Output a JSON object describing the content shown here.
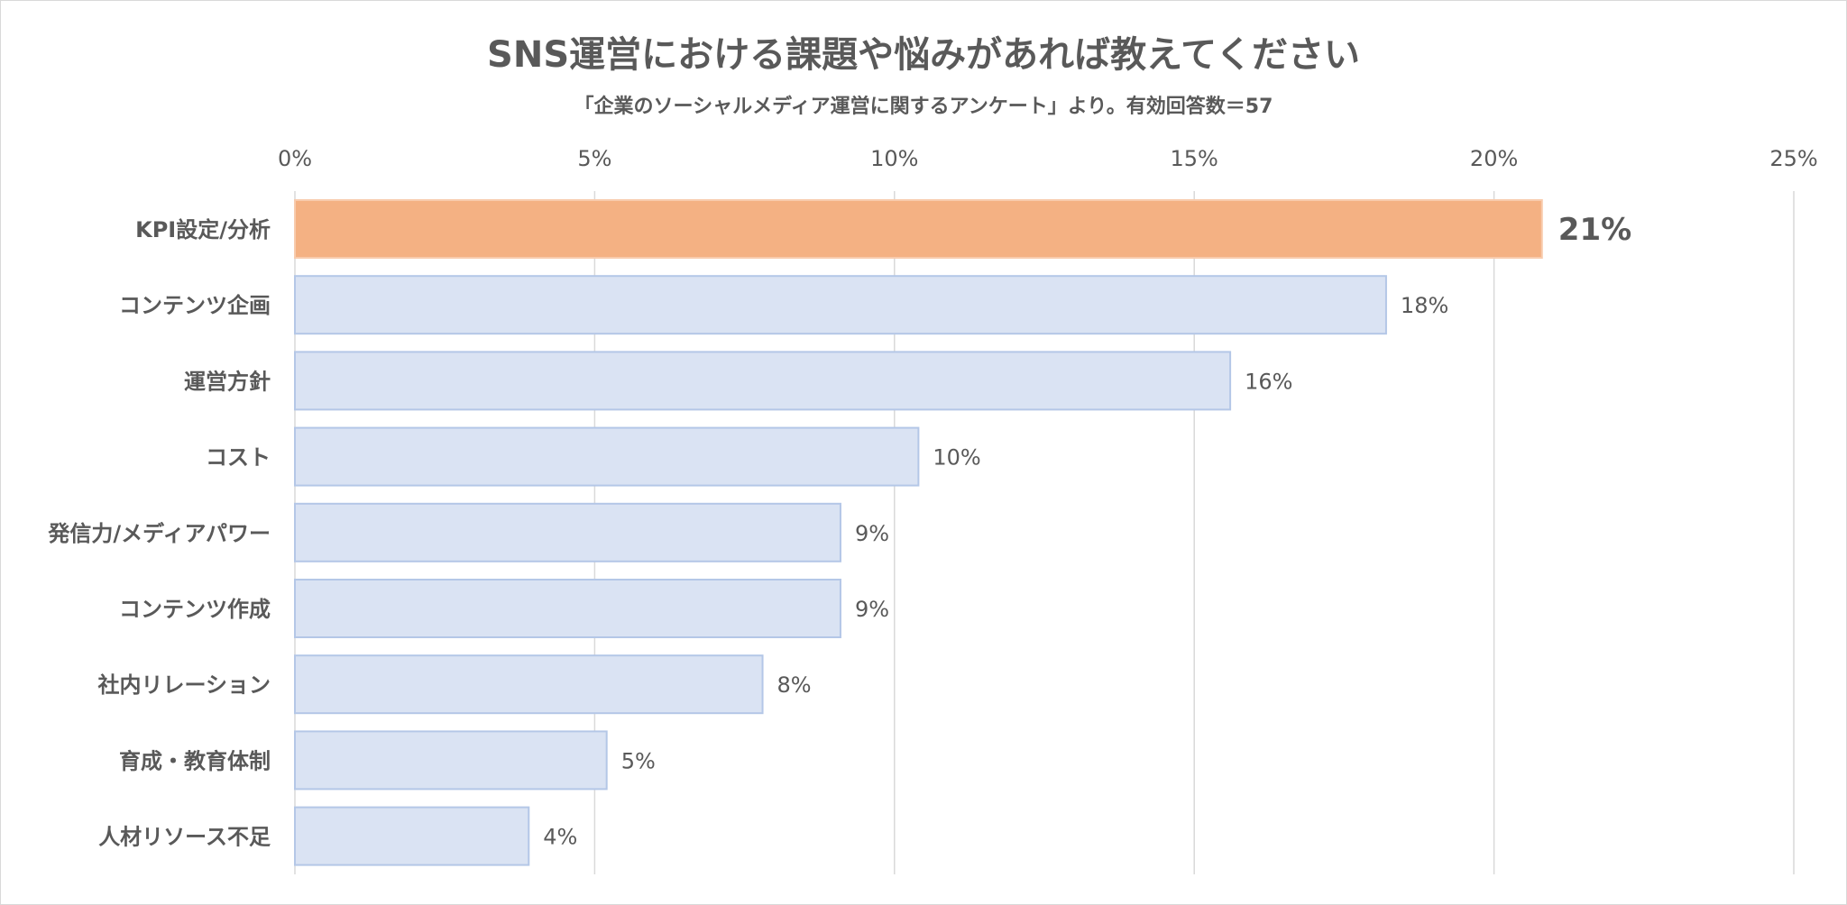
{
  "chart_data": {
    "type": "bar",
    "orientation": "horizontal",
    "title": "SNS運営における課題や悩みがあれば教えてください",
    "subtitle": "「企業のソーシャルメディア運営に関するアンケート」より。有効回答数＝57",
    "categories": [
      "KPI設定/分析",
      "コンテンツ企画",
      "運営方針",
      "コスト",
      "発信力/メディアパワー",
      "コンテンツ作成",
      "社内リレーション",
      "育成・教育体制",
      "人材リソース不足"
    ],
    "values": [
      20.8,
      18.2,
      15.6,
      10.4,
      9.1,
      9.1,
      7.8,
      5.2,
      3.9
    ],
    "value_labels": [
      "21%",
      "18%",
      "16%",
      "10%",
      "9%",
      "9%",
      "8%",
      "5%",
      "4%"
    ],
    "xlim": [
      0,
      25
    ],
    "xticks": [
      "0%",
      "5%",
      "10%",
      "15%",
      "20%",
      "25%"
    ],
    "x_axis_position": "top",
    "grid": true,
    "highlight_index": 0,
    "colors": {
      "bar": "#dae3f3",
      "bar_border": "#b4c7e7",
      "highlight_bar": "#f4b183",
      "highlight_border": "#f8cbad",
      "highlight_label": "#ed7d31",
      "grid": "#d9d9d9",
      "text": "#595959"
    }
  }
}
